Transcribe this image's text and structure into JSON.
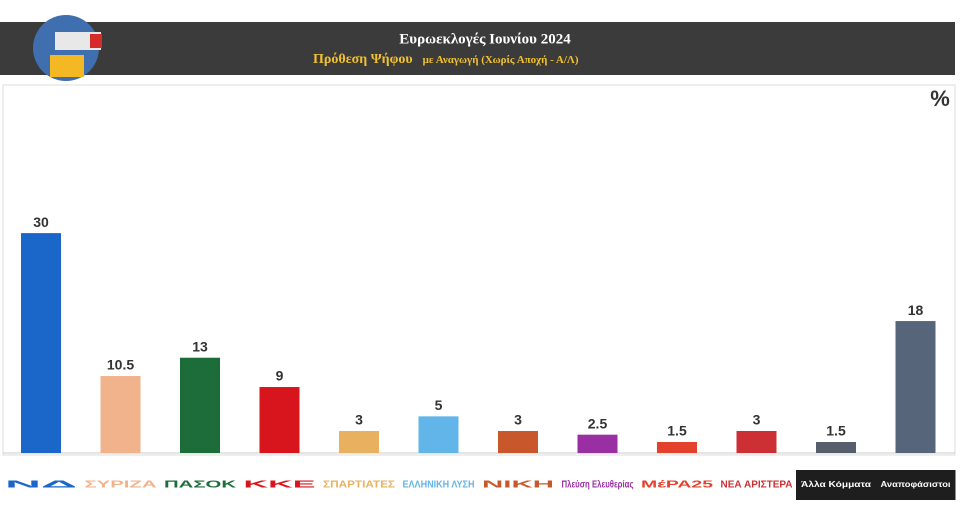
{
  "chart_data": {
    "type": "bar",
    "title": "Ευρωεκλογές Ιουνίου 2024",
    "subtitle": "Πρόθεση Ψήφου",
    "subtitle_note": "με Αναγωγή (Χωρίς Αποχή - Α/Λ)",
    "unit": "%",
    "categories": [
      "ΝΔ",
      "ΣΥΡΙΖΑ",
      "ΠΑΣΟΚ",
      "ΚΚΕ",
      "ΣΠΑΡΤΙΑΤΕΣ",
      "ΕΛΛΗΝΙΚΗ ΛΥΣΗ",
      "ΝΙΚΗ",
      "Πλεύση Ελευθερίας",
      "ΜέΡΑ25",
      "ΝΕΑ ΑΡΙΣΤΕΡΑ",
      "Άλλα Κόμματα",
      "Αναποφάσιστοι"
    ],
    "values": [
      30,
      10.5,
      13,
      9,
      3,
      5,
      3,
      2.5,
      1.5,
      3,
      1.5,
      18
    ],
    "colors": [
      "#1b67c9",
      "#f1b38c",
      "#1d6d3b",
      "#d8151d",
      "#e8b15f",
      "#62b5e8",
      "#c8582b",
      "#9a2fa3",
      "#e3412b",
      "#cc2f34",
      "#56606d",
      "#56657a"
    ]
  }
}
